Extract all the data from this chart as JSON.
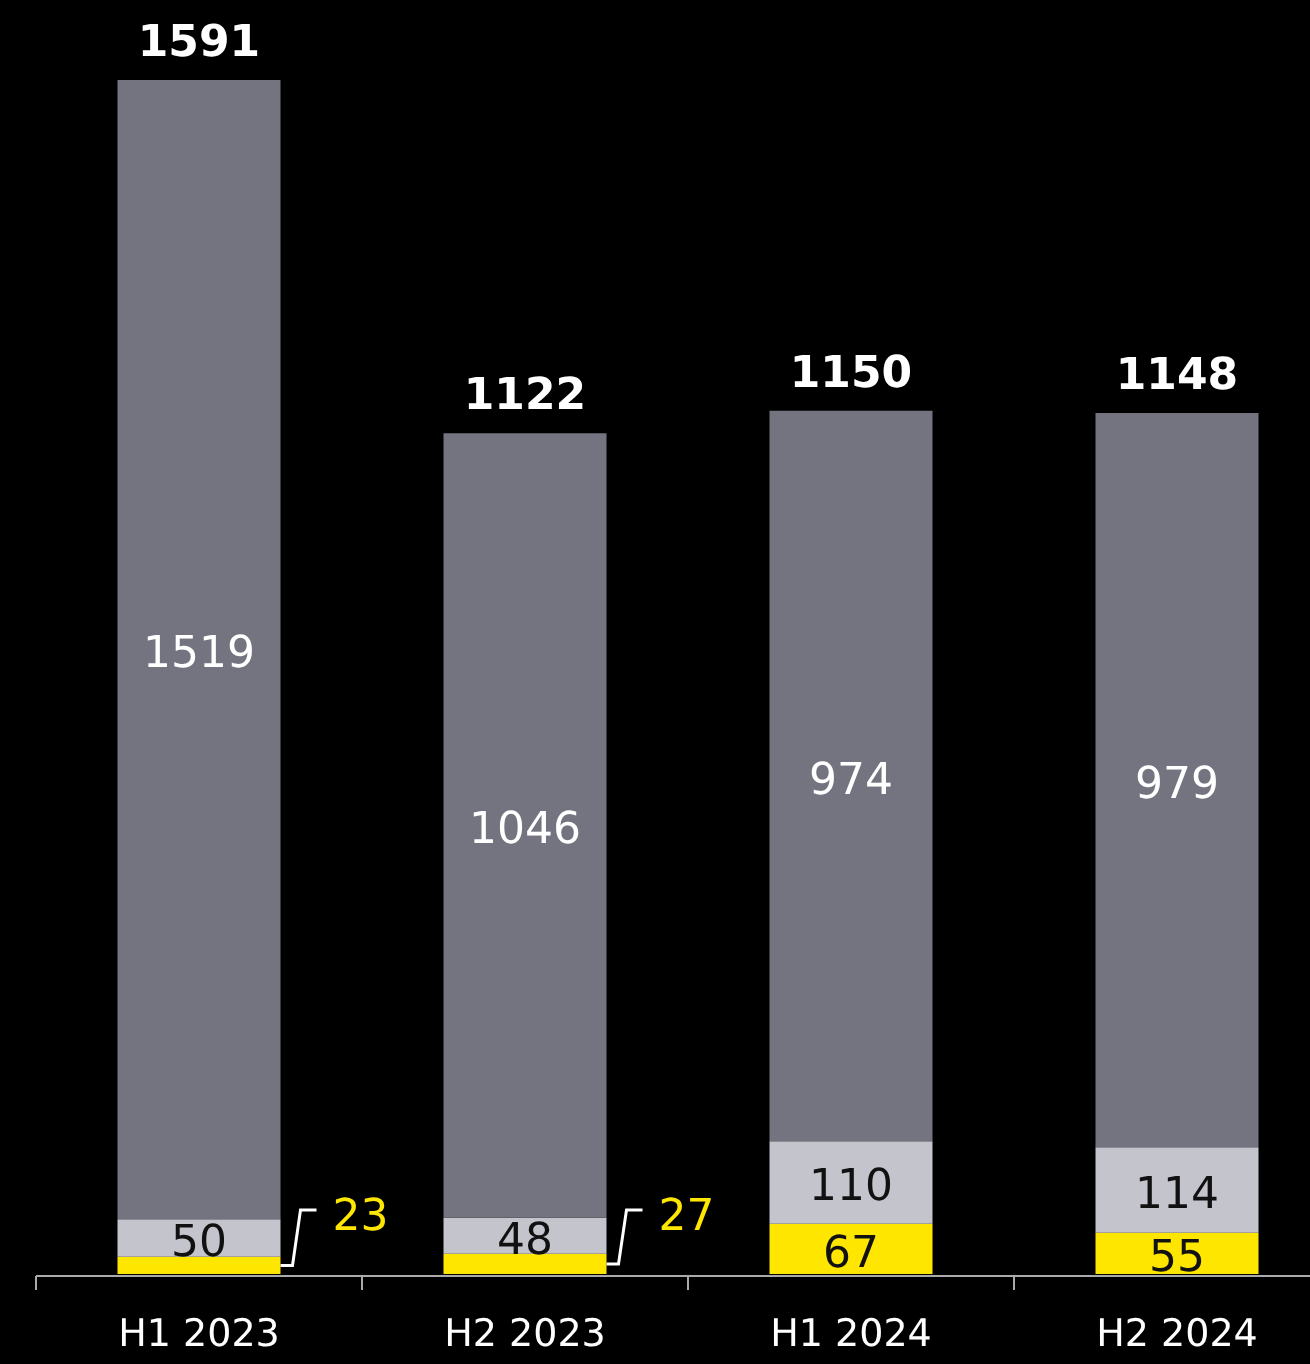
{
  "chart_data": {
    "type": "bar",
    "stacked": true,
    "data_labels": true,
    "categories": [
      "H1 2023",
      "H2 2023",
      "H1 2024",
      "H2 2024"
    ],
    "series": [
      {
        "color": "#ffe600",
        "values": [
          23,
          27,
          67,
          55
        ]
      },
      {
        "color": "#c4c4cd",
        "values": [
          50,
          48,
          110,
          114
        ]
      },
      {
        "color": "#747480",
        "values": [
          1519,
          1046,
          974,
          979
        ]
      }
    ],
    "totals": [
      "1591",
      "1122",
      "1150",
      "1148"
    ]
  }
}
